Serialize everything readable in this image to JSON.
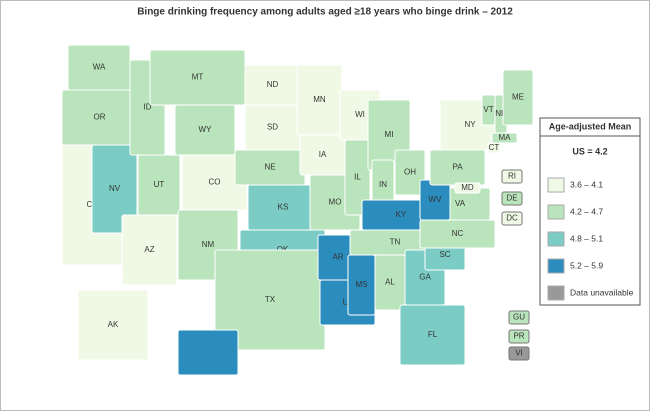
{
  "title": "Binge drinking frequency among adults aged ≥18 years who binge drink – 2012",
  "legend": {
    "title": "Age-adjusted Mean",
    "subtitle": "US = 4.2",
    "items": [
      {
        "label": "3.6 – 4.1",
        "color": "#f0f9e6"
      },
      {
        "label": "4.2 – 4.7",
        "color": "#bae4bc"
      },
      {
        "label": "4.8 – 5.1",
        "color": "#7bccc4"
      },
      {
        "label": "5.2 – 5.9",
        "color": "#2b8cbe"
      },
      {
        "label": "Data unavailable",
        "color": "#999999"
      }
    ]
  },
  "states": [
    {
      "label": "WA",
      "color": "#bae4bc"
    },
    {
      "label": "OR",
      "color": "#bae4bc"
    },
    {
      "label": "CA",
      "color": "#f0f9e6"
    },
    {
      "label": "NV",
      "color": "#7bccc4"
    },
    {
      "label": "ID",
      "color": "#bae4bc"
    },
    {
      "label": "MT",
      "color": "#bae4bc"
    },
    {
      "label": "WY",
      "color": "#bae4bc"
    },
    {
      "label": "UT",
      "color": "#bae4bc"
    },
    {
      "label": "AZ",
      "color": "#f0f9e6"
    },
    {
      "label": "CO",
      "color": "#f0f9e6"
    },
    {
      "label": "NM",
      "color": "#bae4bc"
    },
    {
      "label": "ND",
      "color": "#f0f9e6"
    },
    {
      "label": "SD",
      "color": "#f0f9e6"
    },
    {
      "label": "NE",
      "color": "#bae4bc"
    },
    {
      "label": "KS",
      "color": "#7bccc4"
    },
    {
      "label": "OK",
      "color": "#7bccc4"
    },
    {
      "label": "TX",
      "color": "#bae4bc"
    },
    {
      "label": "MN",
      "color": "#f0f9e6"
    },
    {
      "label": "IA",
      "color": "#f0f9e6"
    },
    {
      "label": "MO",
      "color": "#bae4bc"
    },
    {
      "label": "AR",
      "color": "#2b8cbe"
    },
    {
      "label": "LA",
      "color": "#2b8cbe"
    },
    {
      "label": "WI",
      "color": "#f0f9e6"
    },
    {
      "label": "IL",
      "color": "#bae4bc"
    },
    {
      "label": "MI",
      "color": "#bae4bc"
    },
    {
      "label": "IN",
      "color": "#bae4bc"
    },
    {
      "label": "OH",
      "color": "#bae4bc"
    },
    {
      "label": "KY",
      "color": "#2b8cbe"
    },
    {
      "label": "TN",
      "color": "#bae4bc"
    },
    {
      "label": "MS",
      "color": "#2b8cbe"
    },
    {
      "label": "AL",
      "color": "#bae4bc"
    },
    {
      "label": "GA",
      "color": "#7bccc4"
    },
    {
      "label": "FL",
      "color": "#7bccc4"
    },
    {
      "label": "SC",
      "color": "#7bccc4"
    },
    {
      "label": "NC",
      "color": "#bae4bc"
    },
    {
      "label": "VA",
      "color": "#bae4bc"
    },
    {
      "label": "WV",
      "color": "#2b8cbe"
    },
    {
      "label": "PA",
      "color": "#bae4bc"
    },
    {
      "label": "NY",
      "color": "#f0f9e6"
    },
    {
      "label": "VT",
      "color": "#bae4bc"
    },
    {
      "label": "NH",
      "color": "#bae4bc"
    },
    {
      "label": "ME",
      "color": "#bae4bc"
    },
    {
      "label": "MA",
      "color": "#bae4bc"
    },
    {
      "label": "CT",
      "color": "#f0f9e6"
    },
    {
      "label": "MD",
      "color": "#f0f9e6"
    },
    {
      "label": "AK",
      "color": "#f0f9e6"
    },
    {
      "label": null,
      "color": "#2b8cbe"
    },
    {
      "label": "RI",
      "color": "#f0f9e6"
    },
    {
      "label": "DE",
      "color": "#bae4bc"
    },
    {
      "label": "DC",
      "color": "#f0f9e6"
    },
    {
      "label": "GU",
      "color": "#bae4bc"
    },
    {
      "label": "PR",
      "color": "#bae4bc"
    },
    {
      "label": "VI",
      "color": "#999999"
    }
  ]
}
